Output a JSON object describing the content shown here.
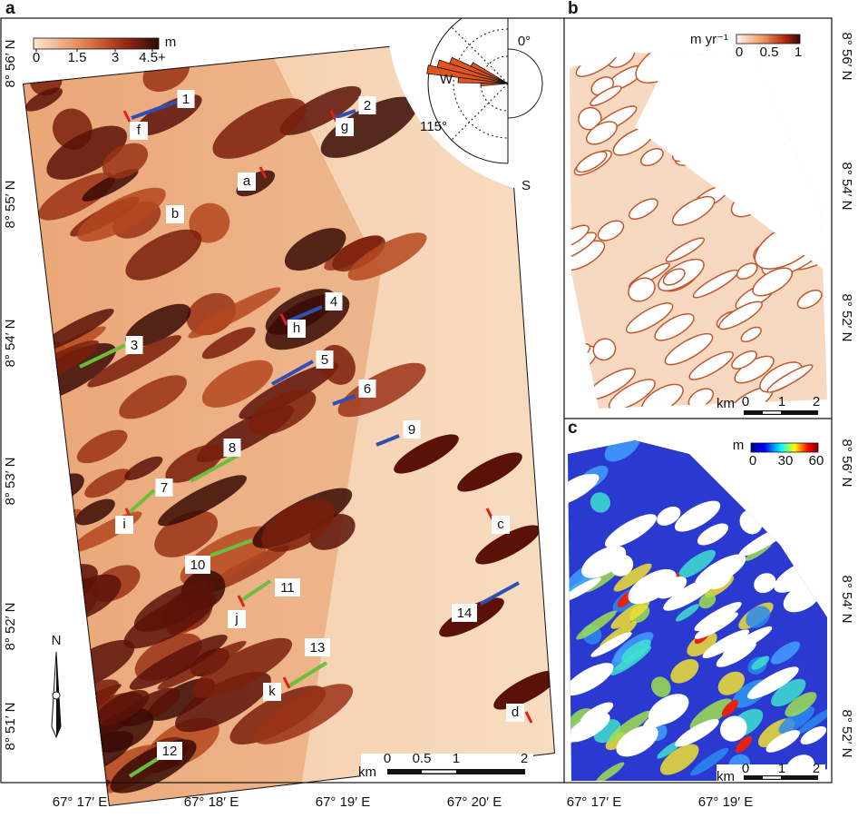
{
  "figure": {
    "panel_a": {
      "label": "a",
      "colorbar": {
        "unit": "m",
        "ticks": [
          "0",
          "1.5",
          "3",
          "4.5+"
        ]
      },
      "rose": {
        "north": "0°",
        "west": "W",
        "south": "S",
        "mean_direction": "115°"
      },
      "north_arrow": "N",
      "scale_bar": {
        "unit": "km",
        "ticks": [
          "0",
          "0.5",
          "1",
          "2"
        ]
      },
      "x_labels": [
        "67° 17′ E",
        "67° 18′ E",
        "67° 19′ E",
        "67° 20′ E"
      ],
      "y_labels": [
        "8° 56′ N",
        "8° 55′ N",
        "8° 54′ N",
        "8° 53′ N",
        "8° 52′ N",
        "8° 51′ N"
      ],
      "profiles": [
        {
          "label": "1",
          "color": "#2f4fb5"
        },
        {
          "label": "2",
          "color": "#2f4fb5"
        },
        {
          "label": "3",
          "color": "#6cbf3c"
        },
        {
          "label": "4",
          "color": "#2f4fb5"
        },
        {
          "label": "5",
          "color": "#2f4fb5"
        },
        {
          "label": "6",
          "color": "#2f4fb5"
        },
        {
          "label": "7",
          "color": "#6cbf3c"
        },
        {
          "label": "8",
          "color": "#6cbf3c"
        },
        {
          "label": "9",
          "color": "#2f4fb5"
        },
        {
          "label": "10",
          "color": "#6cbf3c"
        },
        {
          "label": "11",
          "color": "#6cbf3c"
        },
        {
          "label": "12",
          "color": "#6cbf3c"
        },
        {
          "label": "13",
          "color": "#6cbf3c"
        },
        {
          "label": "14",
          "color": "#2f4fb5"
        }
      ],
      "sites": [
        "f",
        "g",
        "a",
        "b",
        "h",
        "i",
        "c",
        "j",
        "k",
        "d"
      ]
    },
    "panel_b": {
      "label": "b",
      "colorbar": {
        "unit": "m yr⁻¹",
        "ticks": [
          "0",
          "0.5",
          "1"
        ]
      },
      "scale_bar": {
        "unit": "km",
        "ticks": [
          "0",
          "1",
          "2"
        ]
      },
      "y_labels": [
        "8° 56′ N",
        "8° 54′ N",
        "8° 52′ N"
      ]
    },
    "panel_c": {
      "label": "c",
      "colorbar": {
        "unit": "m",
        "ticks": [
          "0",
          "30",
          "60"
        ]
      },
      "scale_bar": {
        "unit": "km",
        "ticks": [
          "0",
          "1",
          "2"
        ]
      },
      "y_labels": [
        "8° 56′ N",
        "8° 54′ N",
        "8° 52′ N"
      ],
      "x_labels": [
        "67° 17′ E",
        "67° 19′ E"
      ]
    }
  }
}
